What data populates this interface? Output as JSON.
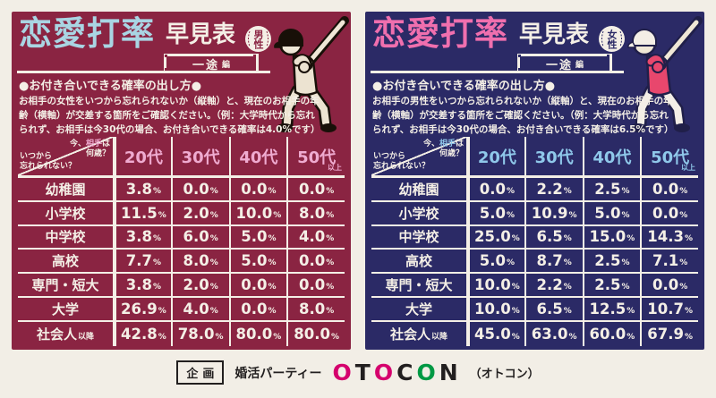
{
  "page_bg": "#f2eee6",
  "panels": [
    {
      "id": "male",
      "theme": {
        "bg": "#8a2442",
        "title_accent": "#a9d5e3",
        "col_accent": "#efabd0",
        "jersey": "#ece3d1",
        "pants": "#ece3d1",
        "helmet": "#181008",
        "glove": "#ece3d1",
        "ink": "#181008"
      },
      "title_main": "恋愛打率",
      "title_sub": "早見表",
      "badge_label": "男性",
      "edition": "一途",
      "edition_suffix": "編",
      "howto_title": "●お付き合いできる確率の出し方●",
      "howto_body": "お相手の女性をいつから忘れられないか（縦軸）と、現在のお相手の年齢（横軸）が交差する箇所をご確認ください。（例：大学時代から忘れられず、お相手は今30代の場合、お付き合いできる確率は4.0%です）",
      "diag": {
        "q_pre": "今、",
        "q_accent": "相手",
        "q_post": "は",
        "q_line2": "何歳？",
        "a_line1": "いつから",
        "a_line2": "忘れられない？"
      },
      "table": {
        "columns": [
          {
            "label": "20代",
            "suffix": ""
          },
          {
            "label": "30代",
            "suffix": ""
          },
          {
            "label": "40代",
            "suffix": ""
          },
          {
            "label": "50代",
            "suffix": "以上"
          }
        ],
        "rows": [
          {
            "label": "幼稚園",
            "suffix": ""
          },
          {
            "label": "小学校",
            "suffix": ""
          },
          {
            "label": "中学校",
            "suffix": ""
          },
          {
            "label": "高校",
            "suffix": ""
          },
          {
            "label": "専門・短大",
            "suffix": ""
          },
          {
            "label": "大学",
            "suffix": ""
          },
          {
            "label": "社会人",
            "suffix": "以降"
          }
        ]
      }
    },
    {
      "id": "female",
      "theme": {
        "bg": "#2b2a66",
        "title_accent": "#f06fae",
        "col_accent": "#8fc8ea",
        "jersey": "#e8476d",
        "pants": "#f3eee6",
        "helmet": "#f3eee6",
        "glove": "#e8476d",
        "ink": "#201f49"
      },
      "title_main": "恋愛打率",
      "title_sub": "早見表",
      "badge_label": "女性",
      "edition": "一途",
      "edition_suffix": "編",
      "howto_title": "●お付き合いできる確率の出し方●",
      "howto_body": "お相手の男性をいつから忘れられないか（縦軸）と、現在のお相手の年齢（横軸）が交差する箇所をご確認ください。（例：大学時代から忘れられず、お相手は今30代の場合、お付き合いできる確率は6.5%です）",
      "diag": {
        "q_pre": "今、",
        "q_accent": "相手",
        "q_post": "は",
        "q_line2": "何歳？",
        "a_line1": "いつから",
        "a_line2": "忘れられない？"
      },
      "table": {
        "columns": [
          {
            "label": "20代",
            "suffix": ""
          },
          {
            "label": "30代",
            "suffix": ""
          },
          {
            "label": "40代",
            "suffix": ""
          },
          {
            "label": "50代",
            "suffix": "以上"
          }
        ],
        "rows": [
          {
            "label": "幼稚園",
            "suffix": ""
          },
          {
            "label": "小学校",
            "suffix": ""
          },
          {
            "label": "中学校",
            "suffix": ""
          },
          {
            "label": "高校",
            "suffix": ""
          },
          {
            "label": "専門・短大",
            "suffix": ""
          },
          {
            "label": "大学",
            "suffix": ""
          },
          {
            "label": "社会人",
            "suffix": "以降"
          }
        ]
      }
    }
  ],
  "chart_data": [
    {
      "type": "table",
      "title": "恋愛打率早見表（男性・一途編）",
      "columns": [
        "20代",
        "30代",
        "40代",
        "50代以上"
      ],
      "rows": [
        "幼稚園",
        "小学校",
        "中学校",
        "高校",
        "専門・短大",
        "大学",
        "社会人以降"
      ],
      "values_percent": [
        [
          3.8,
          0.0,
          0.0,
          0.0
        ],
        [
          11.5,
          2.0,
          10.0,
          8.0
        ],
        [
          3.8,
          6.0,
          5.0,
          4.0
        ],
        [
          7.7,
          8.0,
          5.0,
          0.0
        ],
        [
          3.8,
          2.0,
          0.0,
          0.0
        ],
        [
          26.9,
          4.0,
          0.0,
          8.0
        ],
        [
          42.8,
          78.0,
          80.0,
          80.0
        ]
      ]
    },
    {
      "type": "table",
      "title": "恋愛打率早見表（女性・一途編）",
      "columns": [
        "20代",
        "30代",
        "40代",
        "50代以上"
      ],
      "rows": [
        "幼稚園",
        "小学校",
        "中学校",
        "高校",
        "専門・短大",
        "大学",
        "社会人以降"
      ],
      "values_percent": [
        [
          0.0,
          2.2,
          2.5,
          0.0
        ],
        [
          5.0,
          10.9,
          5.0,
          0.0
        ],
        [
          25.0,
          6.5,
          15.0,
          14.3
        ],
        [
          5.0,
          8.7,
          2.5,
          7.1
        ],
        [
          10.0,
          2.2,
          2.5,
          0.0
        ],
        [
          10.0,
          6.5,
          12.5,
          10.7
        ],
        [
          45.0,
          63.0,
          60.0,
          67.9
        ]
      ]
    }
  ],
  "footer": {
    "credit_label": "企画",
    "service": "婚活パーティー",
    "brand_letters": [
      {
        "ch": "O",
        "color": "#d5006d"
      },
      {
        "ch": "T",
        "color": "#221f1f"
      },
      {
        "ch": "O",
        "color": "#d5006d"
      },
      {
        "ch": "C",
        "color": "#221f1f"
      },
      {
        "ch": "O",
        "color": "#009944"
      },
      {
        "ch": "N",
        "color": "#221f1f"
      }
    ],
    "brand_reading": "（オトコン）"
  }
}
